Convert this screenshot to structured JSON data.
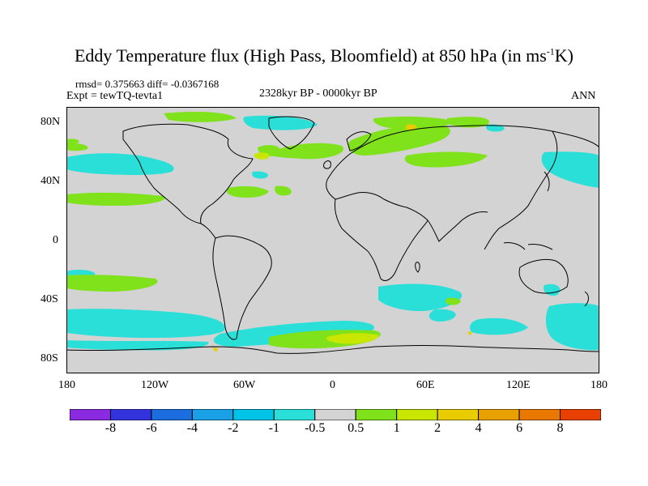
{
  "title": {
    "main": "Eddy Temperature flux (High Pass, Bloomfield) at 850 hPa (in ms",
    "sup": "-1",
    "end": "K)"
  },
  "stats": "rmsd= 0.375663 diff= -0.0367168",
  "experiment": "Expt = tewTQ-tevta1",
  "period": "2328kyr BP - 0000kyr BP",
  "season": "ANN",
  "map": {
    "projection": "cylindrical equidistant",
    "lon_range": [
      -180,
      180
    ],
    "lat_range": [
      -90,
      90
    ],
    "land_color": "#d3d3d3",
    "coastline_color": "#000000",
    "y_tick_labels": [
      "80N",
      "40N",
      "0",
      "40S",
      "80S"
    ],
    "x_tick_labels": [
      "180",
      "120W",
      "60W",
      "0",
      "60E",
      "120E",
      "180"
    ]
  },
  "colorbar": {
    "colors": [
      "#8a2be2",
      "#3333dd",
      "#1c6ee0",
      "#1aa0e6",
      "#00c3e8",
      "#29dfd8",
      "#d3d3d3",
      "#7fe21a",
      "#c8e600",
      "#e8cc00",
      "#e8a000",
      "#e87800",
      "#e84000"
    ],
    "labels": [
      "-8",
      "-6",
      "-4",
      "-2",
      "-1",
      "-0.5",
      "0.5",
      "1",
      "2",
      "4",
      "6",
      "8"
    ]
  },
  "colors": {
    "cyan": "#29dfd8",
    "green": "#7fe21a",
    "yellow": "#c8e600",
    "orange": "#e8cc00",
    "light_blue": "#00c3e8"
  }
}
